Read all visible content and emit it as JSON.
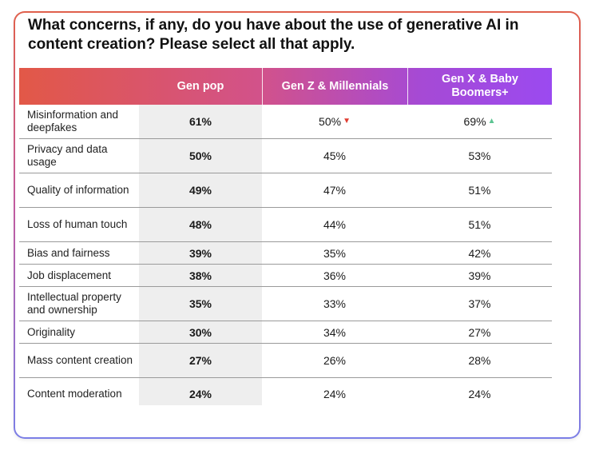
{
  "title": "What concerns, if any, do you have about the use of generative AI in content creation? Please select all that apply.",
  "colors": {
    "down_arrow": "#e03c31",
    "up_arrow": "#5cc492"
  },
  "chart_data": {
    "type": "table",
    "title": "What concerns, if any, do you have about the use of generative AI in content creation? Please select all that apply.",
    "columns": [
      "Gen pop",
      "Gen Z & Millennials",
      "Gen X & Baby Boomers+"
    ],
    "rows": [
      {
        "label": "Misinformation and deepfakes",
        "values": [
          "61%",
          "50%",
          "69%"
        ],
        "markers": [
          "",
          "down",
          "up"
        ]
      },
      {
        "label": "Privacy and data usage",
        "values": [
          "50%",
          "45%",
          "53%"
        ],
        "markers": [
          "",
          "",
          ""
        ]
      },
      {
        "label": "Quality of information",
        "values": [
          "49%",
          "47%",
          "51%"
        ],
        "markers": [
          "",
          "",
          ""
        ]
      },
      {
        "label": "Loss of human touch",
        "values": [
          "48%",
          "44%",
          "51%"
        ],
        "markers": [
          "",
          "",
          ""
        ]
      },
      {
        "label": "Bias and fairness",
        "values": [
          "39%",
          "35%",
          "42%"
        ],
        "markers": [
          "",
          "",
          ""
        ]
      },
      {
        "label": "Job displacement",
        "values": [
          "38%",
          "36%",
          "39%"
        ],
        "markers": [
          "",
          "",
          ""
        ]
      },
      {
        "label": "Intellectual property and ownership",
        "values": [
          "35%",
          "33%",
          "37%"
        ],
        "markers": [
          "",
          "",
          ""
        ]
      },
      {
        "label": "Originality",
        "values": [
          "30%",
          "34%",
          "27%"
        ],
        "markers": [
          "",
          "",
          ""
        ]
      },
      {
        "label": "Mass content creation",
        "values": [
          "27%",
          "26%",
          "28%"
        ],
        "markers": [
          "",
          "",
          ""
        ]
      },
      {
        "label": "Content moderation",
        "values": [
          "24%",
          "24%",
          "24%"
        ],
        "markers": [
          "",
          "",
          ""
        ]
      }
    ]
  }
}
